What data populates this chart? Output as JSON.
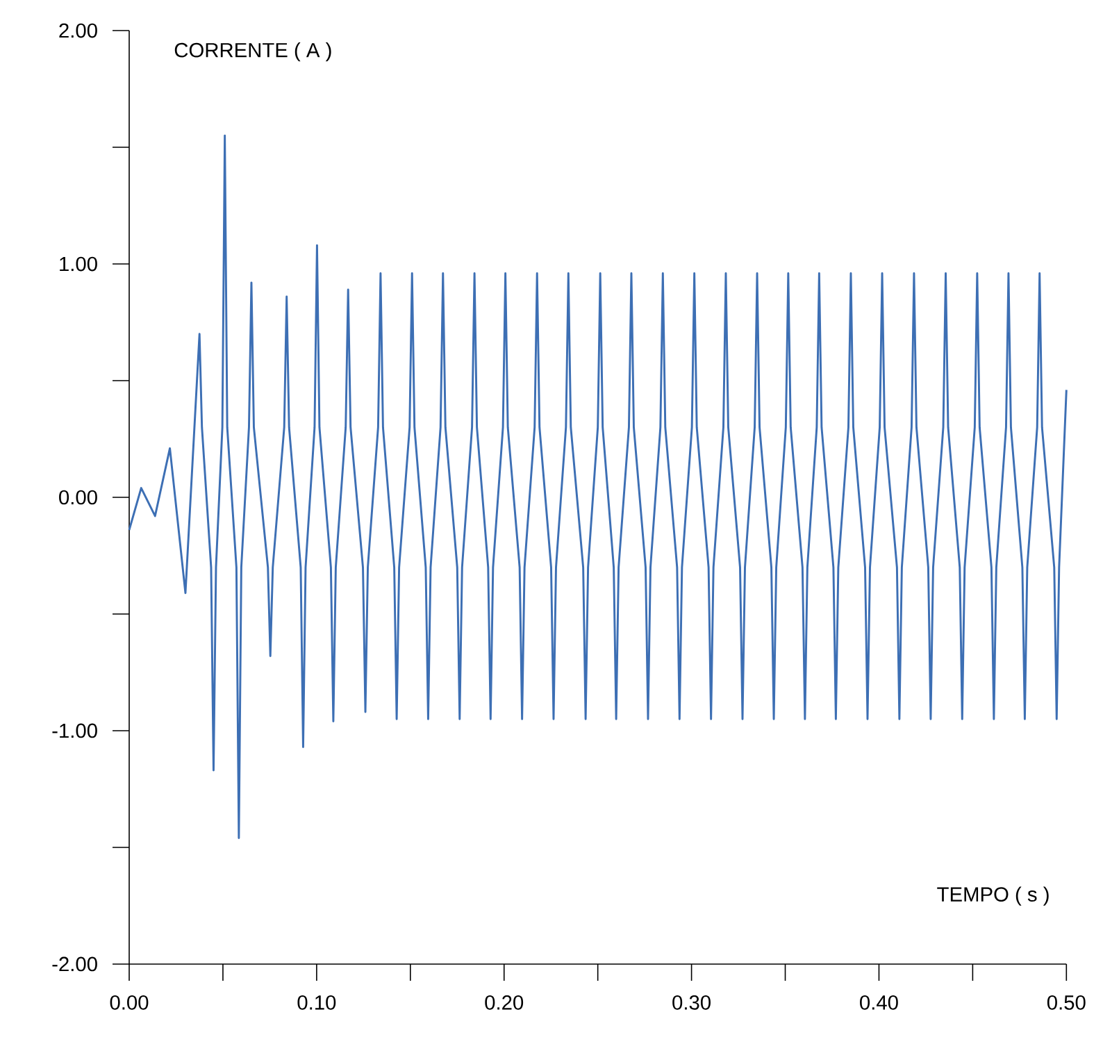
{
  "chart_data": {
    "type": "line",
    "xlabel": "TEMPO ( s )",
    "ylabel": "CORRENTE ( A )",
    "xlim": [
      0,
      0.5
    ],
    "ylim": [
      -2,
      2
    ],
    "xticks": [
      {
        "value": 0,
        "label": "0.00"
      },
      {
        "value": 0.05,
        "label": null
      },
      {
        "value": 0.1,
        "label": "0.10"
      },
      {
        "value": 0.15,
        "label": null
      },
      {
        "value": 0.2,
        "label": "0.20"
      },
      {
        "value": 0.25,
        "label": null
      },
      {
        "value": 0.3,
        "label": "0.30"
      },
      {
        "value": 0.35,
        "label": null
      },
      {
        "value": 0.4,
        "label": "0.40"
      },
      {
        "value": 0.45,
        "label": null
      },
      {
        "value": 0.5,
        "label": "0.50"
      }
    ],
    "yticks": [
      {
        "value": -2,
        "label": "-2.00"
      },
      {
        "value": -1.5,
        "label": null
      },
      {
        "value": -1,
        "label": "-1.00"
      },
      {
        "value": -0.5,
        "label": null
      },
      {
        "value": 0,
        "label": "0.00"
      },
      {
        "value": 0.5,
        "label": null
      },
      {
        "value": 1,
        "label": "1.00"
      },
      {
        "value": 1.5,
        "label": null
      },
      {
        "value": 2,
        "label": "2.00"
      }
    ],
    "line_style": "solid",
    "series": [
      {
        "color": "#3d6fb4",
        "x": [
          0.0,
          0.0064,
          0.0138,
          0.0217,
          0.03,
          0.0375,
          0.0388,
          0.0437,
          0.045,
          0.0463,
          0.0497,
          0.051,
          0.0523,
          0.0572,
          0.0585,
          0.0598,
          0.0639,
          0.0652,
          0.0665,
          0.074,
          0.0753,
          0.0766,
          0.0827,
          0.084,
          0.0853,
          0.0915,
          0.0928,
          0.0941,
          0.0989,
          0.1002,
          0.1015,
          0.1076,
          0.1089,
          0.1102,
          0.1155,
          0.1168,
          0.1181,
          0.1247,
          0.126,
          0.1273,
          0.1328,
          0.1341,
          0.1354,
          0.1414,
          0.1427,
          0.144,
          0.1496,
          0.1509,
          0.1522,
          0.1582,
          0.1595,
          0.1608,
          0.1661,
          0.1674,
          0.1687,
          0.175,
          0.1763,
          0.1776,
          0.1829,
          0.1842,
          0.1855,
          0.1915,
          0.1928,
          0.1941,
          0.1994,
          0.2007,
          0.202,
          0.2083,
          0.2096,
          0.2109,
          0.2163,
          0.2176,
          0.2189,
          0.2251,
          0.2264,
          0.2277,
          0.233,
          0.2343,
          0.2356,
          0.2422,
          0.2435,
          0.2448,
          0.25,
          0.2513,
          0.2526,
          0.2585,
          0.2598,
          0.2611,
          0.2666,
          0.2679,
          0.2692,
          0.2755,
          0.2768,
          0.2781,
          0.2834,
          0.2847,
          0.286,
          0.2923,
          0.2936,
          0.2949,
          0.3002,
          0.3015,
          0.3028,
          0.3091,
          0.3104,
          0.3117,
          0.317,
          0.3183,
          0.3196,
          0.3259,
          0.3272,
          0.3285,
          0.3337,
          0.335,
          0.3363,
          0.3426,
          0.3439,
          0.3452,
          0.3503,
          0.3516,
          0.3529,
          0.3592,
          0.3605,
          0.3618,
          0.3668,
          0.3681,
          0.3694,
          0.3757,
          0.377,
          0.3783,
          0.3837,
          0.385,
          0.3863,
          0.3926,
          0.3939,
          0.3952,
          0.4004,
          0.4017,
          0.403,
          0.4096,
          0.4109,
          0.4122,
          0.4174,
          0.4187,
          0.42,
          0.4263,
          0.4276,
          0.4289,
          0.4343,
          0.4356,
          0.4369,
          0.4431,
          0.4444,
          0.4457,
          0.4511,
          0.4524,
          0.4537,
          0.46,
          0.4613,
          0.4626,
          0.4678,
          0.4691,
          0.4704,
          0.4765,
          0.4778,
          0.4791,
          0.4844,
          0.4857,
          0.487,
          0.4935,
          0.4948,
          0.4961,
          0.5
        ],
        "values": [
          -0.14,
          0.04,
          -0.08,
          0.21,
          -0.41,
          0.7,
          0.3,
          -0.3,
          -1.17,
          -0.3,
          0.3,
          1.55,
          0.3,
          -0.3,
          -1.46,
          -0.3,
          0.3,
          0.92,
          0.3,
          -0.3,
          -0.68,
          -0.3,
          0.3,
          0.86,
          0.3,
          -0.3,
          -1.07,
          -0.3,
          0.3,
          1.08,
          0.3,
          -0.3,
          -0.96,
          -0.3,
          0.3,
          0.89,
          0.3,
          -0.3,
          -0.92,
          -0.3,
          0.3,
          0.96,
          0.3,
          -0.3,
          -0.95,
          -0.3,
          0.3,
          0.96,
          0.3,
          -0.3,
          -0.95,
          -0.3,
          0.3,
          0.96,
          0.3,
          -0.3,
          -0.95,
          -0.3,
          0.3,
          0.96,
          0.3,
          -0.3,
          -0.95,
          -0.3,
          0.3,
          0.96,
          0.3,
          -0.3,
          -0.95,
          -0.3,
          0.3,
          0.96,
          0.3,
          -0.3,
          -0.95,
          -0.3,
          0.3,
          0.96,
          0.3,
          -0.3,
          -0.95,
          -0.3,
          0.3,
          0.96,
          0.3,
          -0.3,
          -0.95,
          -0.3,
          0.3,
          0.96,
          0.3,
          -0.3,
          -0.95,
          -0.3,
          0.3,
          0.96,
          0.3,
          -0.3,
          -0.95,
          -0.3,
          0.3,
          0.96,
          0.3,
          -0.3,
          -0.95,
          -0.3,
          0.3,
          0.96,
          0.3,
          -0.3,
          -0.95,
          -0.3,
          0.3,
          0.96,
          0.3,
          -0.3,
          -0.95,
          -0.3,
          0.3,
          0.96,
          0.3,
          -0.3,
          -0.95,
          -0.3,
          0.3,
          0.96,
          0.3,
          -0.3,
          -0.95,
          -0.3,
          0.3,
          0.96,
          0.3,
          -0.3,
          -0.95,
          -0.3,
          0.3,
          0.96,
          0.3,
          -0.3,
          -0.95,
          -0.3,
          0.3,
          0.96,
          0.3,
          -0.3,
          -0.95,
          -0.3,
          0.3,
          0.96,
          0.3,
          -0.3,
          -0.95,
          -0.3,
          0.3,
          0.96,
          0.3,
          -0.3,
          -0.95,
          -0.3,
          0.3,
          0.96,
          0.3,
          -0.3,
          -0.95,
          -0.3,
          0.3,
          0.96,
          0.3,
          -0.3,
          -0.95,
          -0.3,
          0.46
        ]
      }
    ]
  }
}
